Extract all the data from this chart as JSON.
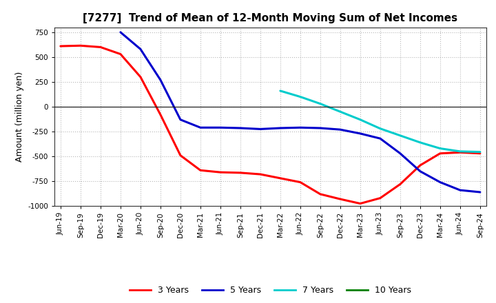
{
  "title": "[7277]  Trend of Mean of 12-Month Moving Sum of Net Incomes",
  "ylabel": "Amount (million yen)",
  "ylim": [
    -1000,
    800
  ],
  "yticks": [
    -1000,
    -750,
    -500,
    -250,
    0,
    250,
    500,
    750
  ],
  "background_color": "#ffffff",
  "plot_bg_color": "#ffffff",
  "grid_color": "#999999",
  "title_fontsize": 11,
  "tick_fontsize": 7.5,
  "ylabel_fontsize": 9,
  "x_labels": [
    "Jun-19",
    "Sep-19",
    "Dec-19",
    "Mar-20",
    "Jun-20",
    "Sep-20",
    "Dec-20",
    "Mar-21",
    "Jun-21",
    "Sep-21",
    "Dec-21",
    "Mar-22",
    "Jun-22",
    "Sep-22",
    "Dec-22",
    "Mar-23",
    "Jun-23",
    "Sep-23",
    "Dec-23",
    "Mar-24",
    "Jun-24",
    "Sep-24"
  ],
  "series_3yr": {
    "label": "3 Years",
    "color": "#ff0000",
    "values": [
      610,
      615,
      600,
      530,
      300,
      -80,
      -490,
      -640,
      -660,
      -665,
      -680,
      -720,
      -760,
      -880,
      -930,
      -975,
      -920,
      -780,
      -590,
      -470,
      -460,
      -470
    ]
  },
  "series_5yr": {
    "label": "5 Years",
    "color": "#0000cc",
    "values": [
      null,
      null,
      null,
      750,
      580,
      270,
      -130,
      -210,
      -210,
      -215,
      -225,
      -215,
      -210,
      -215,
      -230,
      -270,
      -320,
      -470,
      -650,
      -760,
      -840,
      -860
    ]
  },
  "series_7yr": {
    "label": "7 Years",
    "color": "#00cccc",
    "values": [
      null,
      null,
      null,
      null,
      null,
      null,
      null,
      null,
      null,
      null,
      null,
      160,
      100,
      30,
      -50,
      -130,
      -220,
      -290,
      -360,
      -420,
      -450,
      -455
    ]
  },
  "series_10yr": {
    "label": "10 Years",
    "color": "#008000",
    "values": [
      null,
      null,
      null,
      null,
      null,
      null,
      null,
      null,
      null,
      null,
      null,
      null,
      null,
      null,
      null,
      null,
      null,
      null,
      null,
      null,
      null,
      null
    ]
  },
  "legend_labels": [
    "3 Years",
    "5 Years",
    "7 Years",
    "10 Years"
  ],
  "legend_colors": [
    "#ff0000",
    "#0000cc",
    "#00cccc",
    "#008000"
  ]
}
